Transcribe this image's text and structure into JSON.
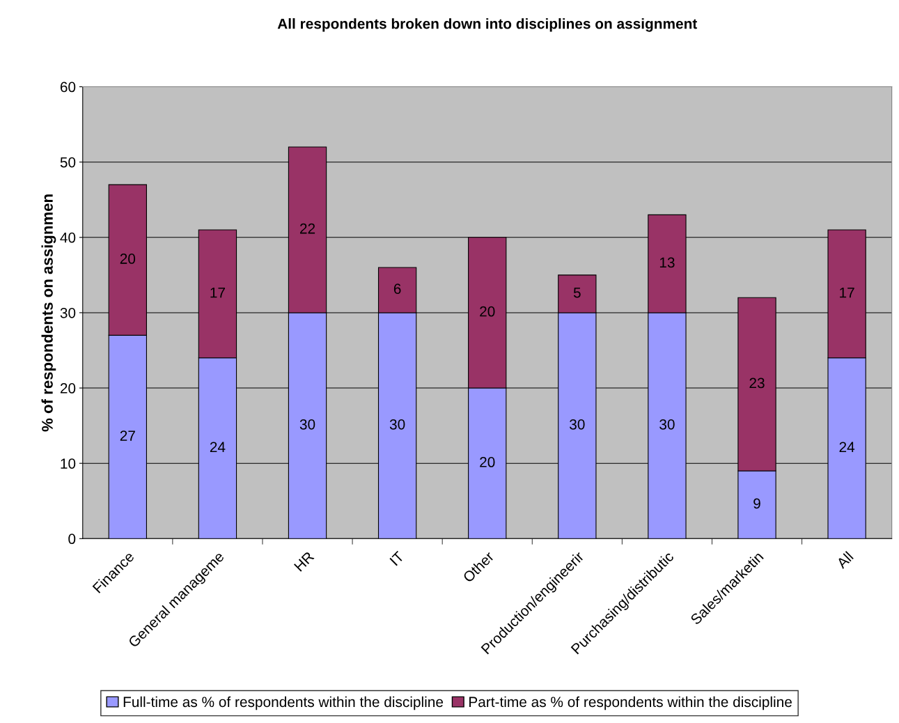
{
  "chart_data": {
    "type": "bar",
    "title": "All respondents broken down into disciplines on assignment",
    "ylabel": "% of respondents on assignmen",
    "categories": [
      "Finance",
      "General manageme",
      "HR",
      "IT",
      "Other",
      "Production/engineerir",
      "Purchasing/distributic",
      "Sales/marketin",
      "All"
    ],
    "series": [
      {
        "name": "Full-time as % of respondents within the discipline",
        "color": "#9999ff",
        "values": [
          27,
          24,
          30,
          30,
          20,
          30,
          30,
          9,
          24
        ]
      },
      {
        "name": "Part-time as % of respondents within the discipline",
        "color": "#993366",
        "values": [
          20,
          17,
          22,
          6,
          20,
          5,
          13,
          23,
          17
        ]
      }
    ],
    "stacked": true,
    "data_labels": true,
    "ylim": [
      0,
      60
    ],
    "yticks": [
      0,
      10,
      20,
      30,
      40,
      50,
      60
    ],
    "grid": "y",
    "legend": "bottom"
  }
}
